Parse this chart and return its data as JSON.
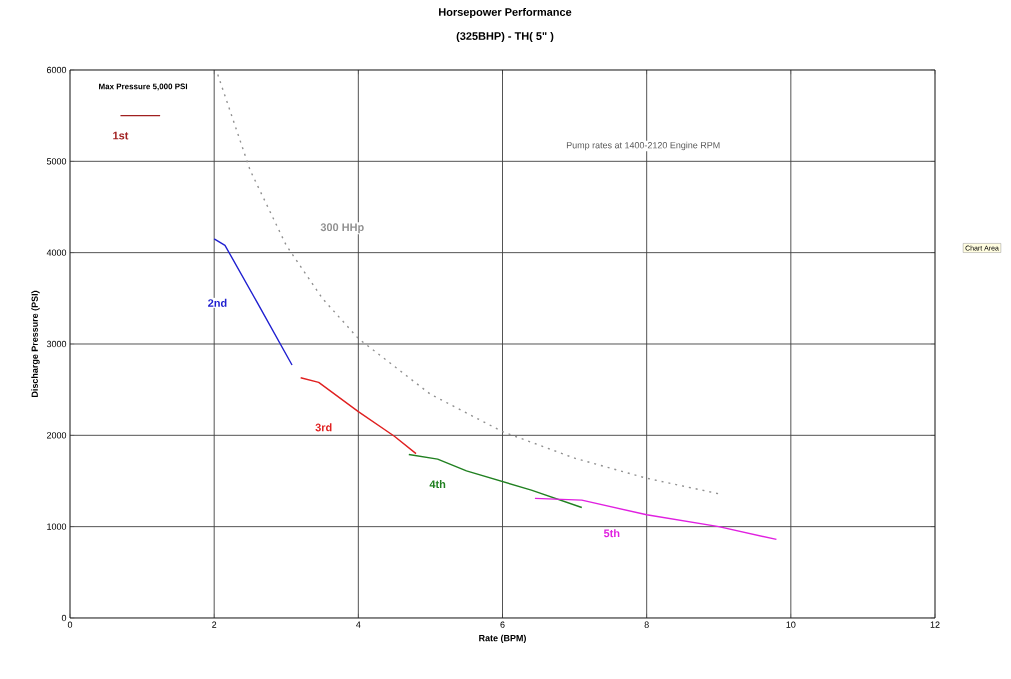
{
  "chart_data": {
    "type": "line",
    "title": "Horsepower Performance",
    "subtitle": "(325BHP) - TH( 5\" )",
    "xlabel": "Rate (BPM)",
    "ylabel": "Discharge Pressure (PSI)",
    "xlim": [
      0,
      12
    ],
    "xticks": [
      0,
      2,
      4,
      6,
      8,
      10,
      12
    ],
    "ylim": [
      0,
      6000
    ],
    "yticks": [
      0,
      1000,
      2000,
      3000,
      4000,
      5000,
      6000
    ],
    "grid": true,
    "marker": "none",
    "annotations": [
      "Max Pressure 5,000 PSI",
      "Pump rates at 1400-2120 Engine RPM",
      "Chart Area"
    ],
    "series": [
      {
        "name": "1st",
        "color": "#a02020",
        "x": [
          0.7,
          1.25
        ],
        "values": [
          5500,
          5500
        ]
      },
      {
        "name": "2nd",
        "color": "#2020d0",
        "x": [
          2.0,
          2.15,
          2.6,
          3.08
        ],
        "values": [
          4150,
          4080,
          3450,
          2770
        ]
      },
      {
        "name": "3rd",
        "color": "#e02020",
        "x": [
          3.2,
          3.45,
          4.0,
          4.5,
          4.8
        ],
        "values": [
          2630,
          2580,
          2260,
          1990,
          1800
        ]
      },
      {
        "name": "4th",
        "color": "#208020",
        "x": [
          4.7,
          5.1,
          5.5,
          6.4,
          7.1
        ],
        "values": [
          1790,
          1740,
          1610,
          1400,
          1210
        ]
      },
      {
        "name": "5th",
        "color": "#e020e0",
        "x": [
          6.45,
          7.1,
          8.0,
          9.0,
          9.8
        ],
        "values": [
          1310,
          1290,
          1130,
          1000,
          860
        ]
      },
      {
        "name": "300 HHp",
        "color": "#909090",
        "line_style": "dotted",
        "x": [
          2.05,
          2.5,
          3.0,
          3.5,
          4.0,
          5.0,
          6.0,
          7.0,
          8.0,
          9.0
        ],
        "values": [
          5950,
          4900,
          4080,
          3500,
          3060,
          2450,
          2040,
          1750,
          1530,
          1360
        ]
      }
    ]
  }
}
